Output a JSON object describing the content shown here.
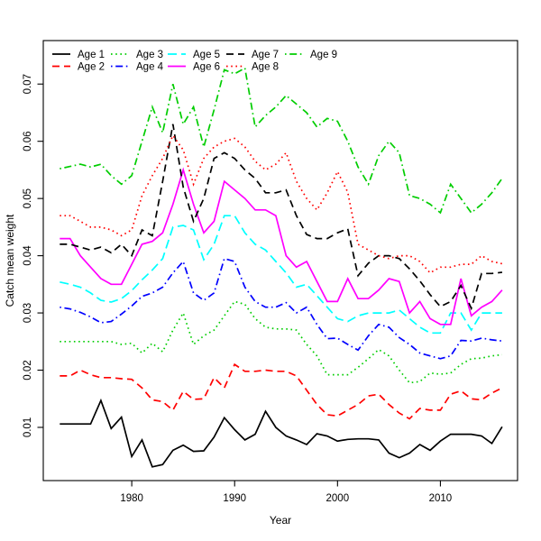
{
  "figure_title": "",
  "chart_data": {
    "type": "line",
    "title": "",
    "xlabel": "Year",
    "ylabel": "Catch mean weight",
    "grid": false,
    "legend_position": "top-left",
    "xlim": [
      1971.4,
      2017.5
    ],
    "ylim": [
      0.0007,
      0.0776
    ],
    "x_ticks": [
      1980,
      1990,
      2000,
      2010
    ],
    "x_tick_labels": [
      "1980",
      "1990",
      "2000",
      "2010"
    ],
    "y_ticks": [
      0.01,
      0.02,
      0.03,
      0.04,
      0.05,
      0.06,
      0.07
    ],
    "y_tick_labels": [
      "0.01",
      "0.02",
      "0.03",
      "0.04",
      "0.05",
      "0.06",
      "0.07"
    ],
    "x": [
      1973,
      1974,
      1975,
      1976,
      1977,
      1978,
      1979,
      1980,
      1981,
      1982,
      1983,
      1984,
      1985,
      1986,
      1987,
      1988,
      1989,
      1990,
      1991,
      1992,
      1993,
      1994,
      1995,
      1996,
      1997,
      1998,
      1999,
      2000,
      2001,
      2002,
      2003,
      2004,
      2005,
      2006,
      2007,
      2008,
      2009,
      2010,
      2011,
      2012,
      2013,
      2014,
      2015,
      2016
    ],
    "series": [
      {
        "name": "Age 1",
        "color": "#000000",
        "linestyle": "solid",
        "values": [
          0.0106,
          0.0106,
          0.0106,
          0.0106,
          0.0147,
          0.0098,
          0.0118,
          0.0049,
          0.0078,
          0.0031,
          0.0035,
          0.006,
          0.0069,
          0.0058,
          0.0059,
          0.0083,
          0.0117,
          0.0096,
          0.0078,
          0.0088,
          0.0128,
          0.01,
          0.0085,
          0.0078,
          0.007,
          0.0089,
          0.0085,
          0.0076,
          0.0079,
          0.008,
          0.008,
          0.0078,
          0.0055,
          0.0047,
          0.0055,
          0.007,
          0.006,
          0.0076,
          0.0088,
          0.0088,
          0.0088,
          0.0085,
          0.0072,
          0.0101
        ]
      },
      {
        "name": "Age 2",
        "color": "#FF0000",
        "linestyle": "dashed",
        "values": [
          0.019,
          0.019,
          0.02,
          0.0192,
          0.0187,
          0.0187,
          0.0185,
          0.0184,
          0.0169,
          0.0148,
          0.0145,
          0.013,
          0.0163,
          0.0149,
          0.015,
          0.0187,
          0.0169,
          0.021,
          0.0198,
          0.0198,
          0.02,
          0.0198,
          0.0198,
          0.019,
          0.0165,
          0.014,
          0.0122,
          0.012,
          0.013,
          0.014,
          0.0155,
          0.0158,
          0.014,
          0.0125,
          0.0115,
          0.0133,
          0.013,
          0.013,
          0.0158,
          0.0164,
          0.015,
          0.0148,
          0.016,
          0.0169
        ]
      },
      {
        "name": "Age 3",
        "color": "#00CD00",
        "linestyle": "dotted",
        "values": [
          0.025,
          0.025,
          0.025,
          0.025,
          0.025,
          0.025,
          0.0245,
          0.0247,
          0.023,
          0.0247,
          0.0232,
          0.027,
          0.03,
          0.0245,
          0.026,
          0.027,
          0.0295,
          0.032,
          0.0315,
          0.029,
          0.0275,
          0.0272,
          0.0272,
          0.027,
          0.0245,
          0.0225,
          0.0192,
          0.0192,
          0.0192,
          0.0205,
          0.022,
          0.0236,
          0.0225,
          0.02,
          0.0178,
          0.018,
          0.0195,
          0.0193,
          0.0195,
          0.021,
          0.022,
          0.0221,
          0.0225,
          0.0227
        ]
      },
      {
        "name": "Age 4",
        "color": "#0000FF",
        "linestyle": "dotdash",
        "values": [
          0.031,
          0.0307,
          0.0301,
          0.0293,
          0.0283,
          0.0285,
          0.0298,
          0.0312,
          0.0329,
          0.0335,
          0.0345,
          0.037,
          0.039,
          0.0335,
          0.0322,
          0.0335,
          0.0395,
          0.039,
          0.0345,
          0.032,
          0.031,
          0.031,
          0.0318,
          0.03,
          0.031,
          0.028,
          0.0255,
          0.0256,
          0.0245,
          0.0235,
          0.026,
          0.028,
          0.0275,
          0.0257,
          0.0245,
          0.023,
          0.0225,
          0.022,
          0.0225,
          0.0252,
          0.0251,
          0.0256,
          0.0253,
          0.0251
        ]
      },
      {
        "name": "Age 5",
        "color": "#00FFFF",
        "linestyle": "longdash",
        "values": [
          0.0354,
          0.035,
          0.0345,
          0.0335,
          0.0322,
          0.0319,
          0.0325,
          0.0339,
          0.0358,
          0.0375,
          0.0395,
          0.045,
          0.0453,
          0.0445,
          0.0393,
          0.042,
          0.047,
          0.047,
          0.044,
          0.042,
          0.041,
          0.039,
          0.037,
          0.0345,
          0.035,
          0.033,
          0.031,
          0.029,
          0.0285,
          0.0295,
          0.03,
          0.03,
          0.03,
          0.0305,
          0.029,
          0.0275,
          0.0265,
          0.0265,
          0.03,
          0.03,
          0.027,
          0.03,
          0.03,
          0.03
        ]
      },
      {
        "name": "Age 6",
        "color": "#FF00FF",
        "linestyle": "solid",
        "values": [
          0.043,
          0.043,
          0.04,
          0.038,
          0.036,
          0.035,
          0.035,
          0.0385,
          0.042,
          0.0425,
          0.044,
          0.049,
          0.055,
          0.049,
          0.044,
          0.046,
          0.053,
          0.0515,
          0.05,
          0.048,
          0.048,
          0.047,
          0.04,
          0.038,
          0.039,
          0.0355,
          0.032,
          0.032,
          0.036,
          0.0325,
          0.0325,
          0.034,
          0.036,
          0.0355,
          0.03,
          0.032,
          0.029,
          0.028,
          0.028,
          0.036,
          0.0295,
          0.031,
          0.032,
          0.034
        ]
      },
      {
        "name": "Age 7",
        "color": "#000000",
        "linestyle": "dashed",
        "values": [
          0.042,
          0.042,
          0.0415,
          0.041,
          0.0415,
          0.0405,
          0.042,
          0.04,
          0.0445,
          0.0435,
          0.053,
          0.063,
          0.052,
          0.046,
          0.05,
          0.057,
          0.058,
          0.057,
          0.055,
          0.0535,
          0.051,
          0.051,
          0.0515,
          0.047,
          0.0437,
          0.043,
          0.043,
          0.044,
          0.0447,
          0.0365,
          0.0387,
          0.04,
          0.04,
          0.0395,
          0.0377,
          0.0356,
          0.0332,
          0.0311,
          0.032,
          0.0348,
          0.0308,
          0.0369,
          0.0369,
          0.0371
        ]
      },
      {
        "name": "Age 8",
        "color": "#FF0000",
        "linestyle": "dotted",
        "values": [
          0.047,
          0.047,
          0.046,
          0.045,
          0.045,
          0.0445,
          0.0435,
          0.0445,
          0.0505,
          0.054,
          0.057,
          0.061,
          0.0585,
          0.0525,
          0.057,
          0.059,
          0.06,
          0.0605,
          0.059,
          0.0565,
          0.055,
          0.056,
          0.058,
          0.053,
          0.05,
          0.048,
          0.051,
          0.0547,
          0.0511,
          0.042,
          0.041,
          0.04,
          0.0395,
          0.04,
          0.04,
          0.039,
          0.037,
          0.038,
          0.038,
          0.0385,
          0.0385,
          0.04,
          0.039,
          0.0386
        ]
      },
      {
        "name": "Age 9",
        "color": "#00CD00",
        "linestyle": "dotdash",
        "values": [
          0.0552,
          0.0556,
          0.056,
          0.0555,
          0.056,
          0.054,
          0.0525,
          0.054,
          0.06,
          0.066,
          0.0615,
          0.07,
          0.063,
          0.066,
          0.059,
          0.0655,
          0.0725,
          0.0718,
          0.0728,
          0.0625,
          0.0645,
          0.066,
          0.068,
          0.0665,
          0.065,
          0.0625,
          0.064,
          0.0635,
          0.06,
          0.0555,
          0.0525,
          0.0575,
          0.06,
          0.058,
          0.0505,
          0.05,
          0.049,
          0.0475,
          0.0525,
          0.05,
          0.0475,
          0.049,
          0.051,
          0.0535
        ]
      }
    ]
  }
}
